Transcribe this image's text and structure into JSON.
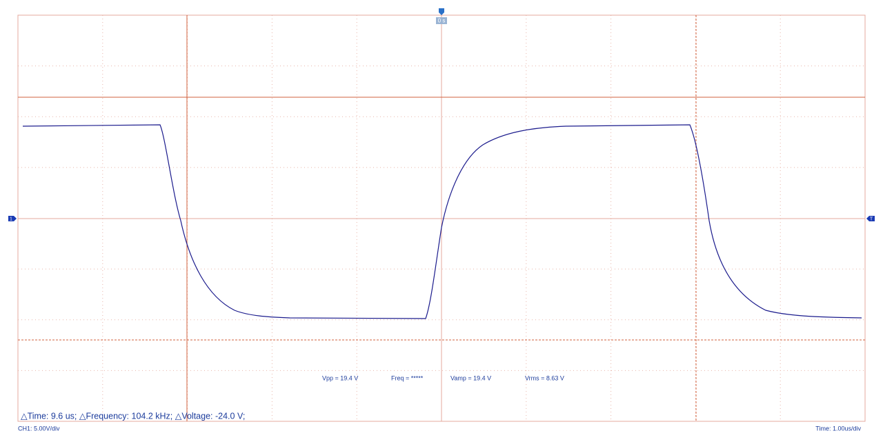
{
  "trigger_time_label": "0 s",
  "channel_marker": "1",
  "trigger_level_marker": "T",
  "measurements": [
    "Vpp = 19.4 V",
    "Freq = *****",
    "Vamp = 19.4 V",
    "Vrms = 8.63 V"
  ],
  "cursor_readout": "△Time: 9.6 us; △Frequency: 104.2 kHz; △Voltage: -24.0 V;",
  "channel_scale": "CH1: 5.00V/div",
  "time_scale": "Time: 1.00us/div"
}
